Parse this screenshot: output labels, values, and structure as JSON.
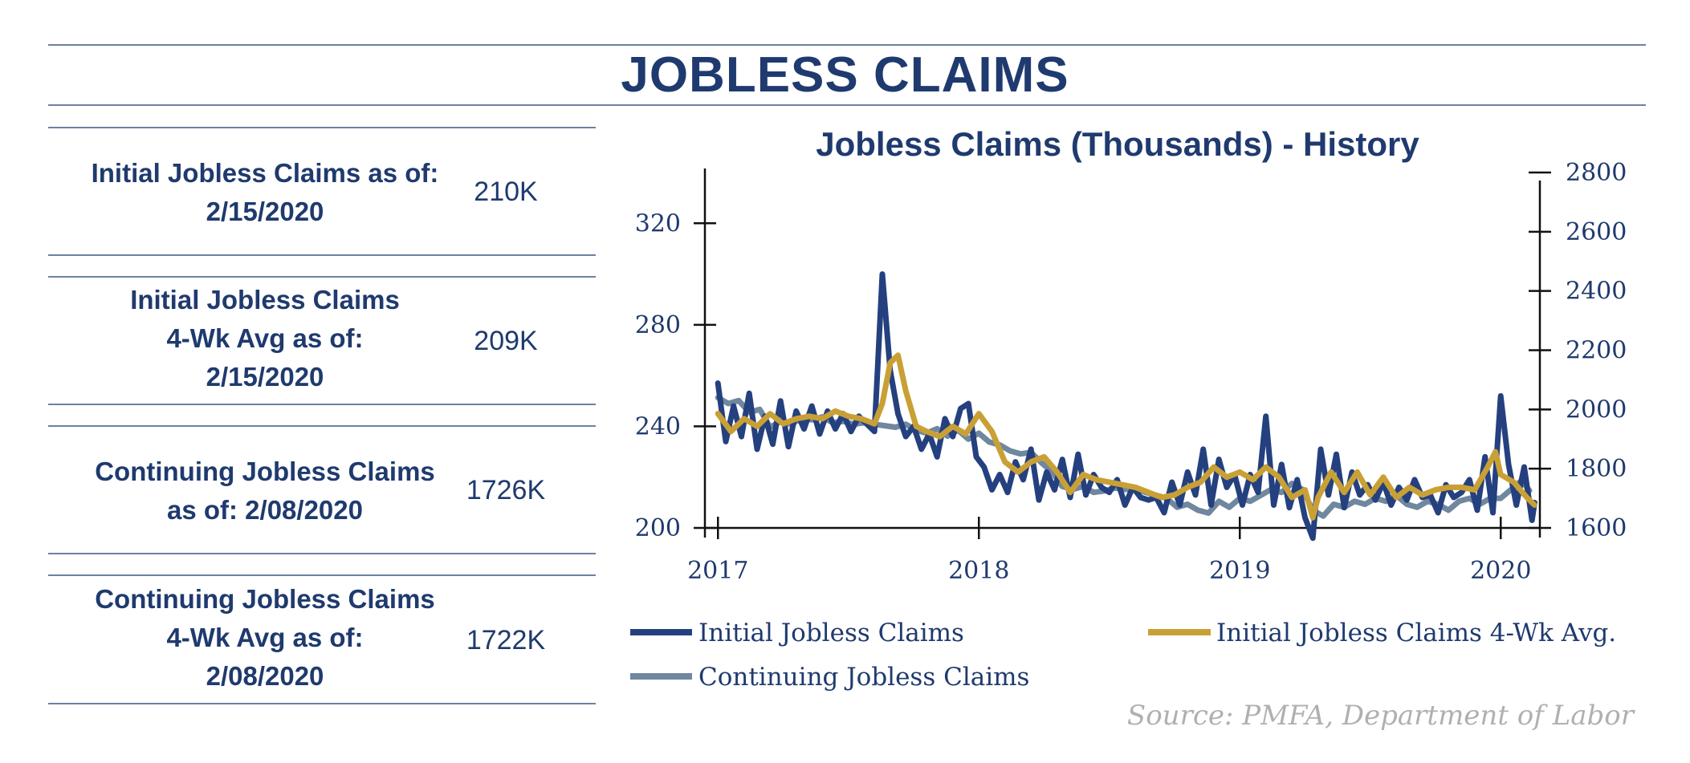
{
  "header": {
    "title": "JOBLESS CLAIMS"
  },
  "stats": [
    {
      "label_lines": [
        "Initial Jobless Claims as of:",
        "2/15/2020"
      ],
      "value": "210K"
    },
    {
      "label_lines": [
        "Initial Jobless Claims",
        "4-Wk Avg as of:",
        "2/15/2020"
      ],
      "value": "209K"
    },
    {
      "label_lines": [
        "Continuing Jobless Claims",
        "as of: 2/08/2020"
      ],
      "value": "1726K"
    },
    {
      "label_lines": [
        "Continuing Jobless Claims",
        "4-Wk Avg as of:",
        "2/08/2020"
      ],
      "value": "1722K"
    }
  ],
  "source": "Source:  PMFA,  Department of Labor",
  "colors": {
    "initial": "#24407f",
    "avg": "#c9a035",
    "continuing": "#6f879f",
    "text": "#1f3a6e",
    "rule": "#6b82a0"
  },
  "chart_data": {
    "type": "line",
    "title": "Jobless Claims (Thousands) - History",
    "x_ticks": [
      "2017",
      "2018",
      "2019",
      "2020"
    ],
    "y_left": {
      "ticks": [
        200,
        240,
        280,
        320
      ],
      "range": [
        200,
        340
      ]
    },
    "y_right": {
      "ticks": [
        1600,
        1800,
        2000,
        2200,
        2400,
        2600,
        2800
      ],
      "range": [
        1600,
        2800
      ]
    },
    "legend": "bottom",
    "series": [
      {
        "name": "Initial Jobless Claims",
        "axis": "left",
        "x": [
          2017.0,
          2017.03,
          2017.06,
          2017.09,
          2017.12,
          2017.15,
          2017.18,
          2017.21,
          2017.24,
          2017.27,
          2017.3,
          2017.33,
          2017.36,
          2017.39,
          2017.42,
          2017.45,
          2017.48,
          2017.51,
          2017.54,
          2017.57,
          2017.6,
          2017.63,
          2017.66,
          2017.69,
          2017.72,
          2017.75,
          2017.78,
          2017.81,
          2017.84,
          2017.87,
          2017.9,
          2017.93,
          2017.96,
          2017.99,
          2018.02,
          2018.05,
          2018.08,
          2018.11,
          2018.14,
          2018.17,
          2018.2,
          2018.23,
          2018.26,
          2018.29,
          2018.32,
          2018.35,
          2018.38,
          2018.41,
          2018.44,
          2018.47,
          2018.5,
          2018.53,
          2018.56,
          2018.59,
          2018.62,
          2018.65,
          2018.68,
          2018.71,
          2018.74,
          2018.77,
          2018.8,
          2018.83,
          2018.86,
          2018.89,
          2018.92,
          2018.95,
          2018.98,
          2019.01,
          2019.04,
          2019.07,
          2019.1,
          2019.13,
          2019.16,
          2019.19,
          2019.22,
          2019.25,
          2019.28,
          2019.31,
          2019.34,
          2019.37,
          2019.4,
          2019.43,
          2019.46,
          2019.49,
          2019.52,
          2019.55,
          2019.58,
          2019.61,
          2019.64,
          2019.67,
          2019.7,
          2019.73,
          2019.76,
          2019.79,
          2019.82,
          2019.85,
          2019.88,
          2019.91,
          2019.94,
          2019.97,
          2020.0,
          2020.03,
          2020.06,
          2020.09,
          2020.12,
          2020.13
        ],
        "values": [
          257,
          234,
          248,
          236,
          253,
          231,
          244,
          233,
          250,
          232,
          246,
          239,
          248,
          237,
          246,
          239,
          245,
          238,
          244,
          241,
          238,
          300,
          262,
          245,
          236,
          240,
          231,
          237,
          228,
          243,
          236,
          247,
          249,
          228,
          224,
          215,
          221,
          214,
          226,
          219,
          231,
          211,
          222,
          215,
          227,
          212,
          229,
          213,
          221,
          216,
          214,
          219,
          209,
          216,
          212,
          211,
          212,
          206,
          218,
          209,
          222,
          213,
          231,
          209,
          227,
          216,
          221,
          209,
          221,
          214,
          244,
          209,
          225,
          208,
          219,
          204,
          196,
          231,
          213,
          229,
          208,
          222,
          213,
          217,
          211,
          218,
          209,
          216,
          211,
          219,
          212,
          213,
          206,
          217,
          212,
          214,
          219,
          207,
          228,
          206,
          252,
          225,
          209,
          224,
          203,
          210
        ]
      },
      {
        "name": "Initial Jobless Claims 4-Wk Avg.",
        "axis": "left",
        "x": [
          2017.0,
          2017.05,
          2017.1,
          2017.15,
          2017.2,
          2017.25,
          2017.3,
          2017.35,
          2017.4,
          2017.45,
          2017.5,
          2017.55,
          2017.6,
          2017.63,
          2017.66,
          2017.69,
          2017.72,
          2017.76,
          2017.8,
          2017.85,
          2017.9,
          2017.95,
          2018.0,
          2018.05,
          2018.1,
          2018.15,
          2018.2,
          2018.25,
          2018.3,
          2018.35,
          2018.4,
          2018.45,
          2018.5,
          2018.55,
          2018.6,
          2018.65,
          2018.7,
          2018.75,
          2018.8,
          2018.85,
          2018.9,
          2018.95,
          2019.0,
          2019.05,
          2019.1,
          2019.15,
          2019.2,
          2019.25,
          2019.28,
          2019.3,
          2019.35,
          2019.4,
          2019.45,
          2019.5,
          2019.55,
          2019.6,
          2019.65,
          2019.7,
          2019.75,
          2019.8,
          2019.85,
          2019.9,
          2019.95,
          2019.98,
          2020.0,
          2020.05,
          2020.1,
          2020.13
        ],
        "values": [
          245,
          238,
          243,
          240,
          245,
          241,
          243,
          244,
          243,
          246,
          244,
          243,
          241,
          249,
          265,
          268,
          254,
          240,
          238,
          236,
          240,
          237,
          245,
          238,
          226,
          222,
          226,
          228,
          222,
          214,
          221,
          219,
          218,
          217,
          216,
          214,
          212,
          213,
          216,
          218,
          224,
          220,
          222,
          219,
          224,
          220,
          212,
          215,
          204,
          212,
          222,
          214,
          222,
          213,
          220,
          212,
          216,
          213,
          215,
          216,
          216,
          215,
          224,
          230,
          221,
          218,
          212,
          209
        ]
      },
      {
        "name": "Continuing Jobless Claims",
        "axis": "right",
        "x": [
          2017.0,
          2017.04,
          2017.08,
          2017.12,
          2017.16,
          2017.2,
          2017.24,
          2017.28,
          2017.32,
          2017.36,
          2017.4,
          2017.44,
          2017.48,
          2017.52,
          2017.56,
          2017.6,
          2017.64,
          2017.68,
          2017.72,
          2017.76,
          2017.8,
          2017.84,
          2017.88,
          2017.92,
          2017.96,
          2018.0,
          2018.04,
          2018.08,
          2018.12,
          2018.16,
          2018.2,
          2018.24,
          2018.28,
          2018.32,
          2018.36,
          2018.4,
          2018.44,
          2018.48,
          2018.52,
          2018.56,
          2018.6,
          2018.64,
          2018.68,
          2018.72,
          2018.76,
          2018.8,
          2018.84,
          2018.88,
          2018.92,
          2018.96,
          2019.0,
          2019.04,
          2019.08,
          2019.12,
          2019.16,
          2019.2,
          2019.24,
          2019.28,
          2019.32,
          2019.36,
          2019.4,
          2019.44,
          2019.48,
          2019.52,
          2019.56,
          2019.6,
          2019.64,
          2019.68,
          2019.72,
          2019.76,
          2019.8,
          2019.84,
          2019.88,
          2019.92,
          2019.96,
          2020.0,
          2020.04,
          2020.08,
          2020.11
        ],
        "values": [
          2040,
          2020,
          2030,
          1990,
          2000,
          1940,
          1960,
          1950,
          1970,
          1965,
          1975,
          1955,
          1960,
          1950,
          1955,
          1950,
          1945,
          1940,
          1950,
          1930,
          1920,
          1935,
          1910,
          1930,
          1900,
          1920,
          1890,
          1880,
          1860,
          1850,
          1855,
          1820,
          1790,
          1740,
          1730,
          1740,
          1720,
          1725,
          1735,
          1730,
          1730,
          1720,
          1710,
          1700,
          1670,
          1680,
          1660,
          1650,
          1690,
          1670,
          1700,
          1690,
          1710,
          1730,
          1720,
          1750,
          1730,
          1660,
          1640,
          1680,
          1670,
          1690,
          1680,
          1700,
          1690,
          1710,
          1680,
          1670,
          1690,
          1680,
          1660,
          1690,
          1700,
          1680,
          1700,
          1700,
          1730,
          1760,
          1726
        ]
      }
    ]
  }
}
